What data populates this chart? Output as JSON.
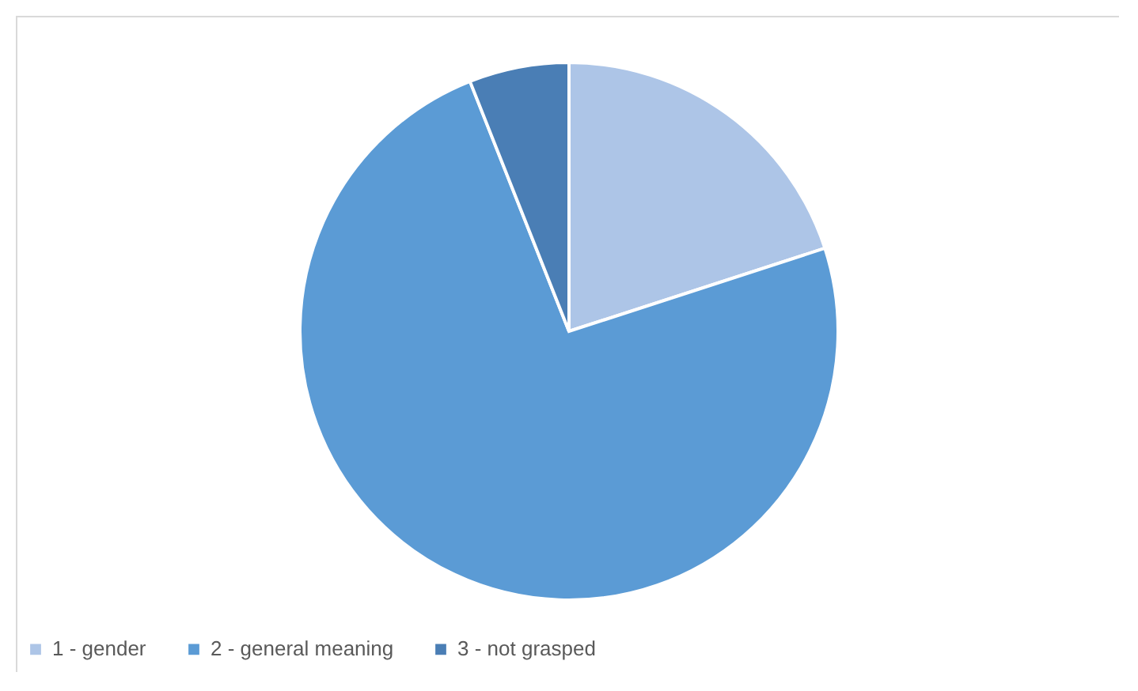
{
  "chart_data": {
    "type": "pie",
    "categories": [
      "1 - gender",
      "2 - general meaning",
      "3 - not grasped"
    ],
    "values": [
      20,
      74,
      6
    ],
    "colors": [
      "#adc5e7",
      "#5b9bd5",
      "#4a7eb5"
    ],
    "legend": "bottom"
  }
}
